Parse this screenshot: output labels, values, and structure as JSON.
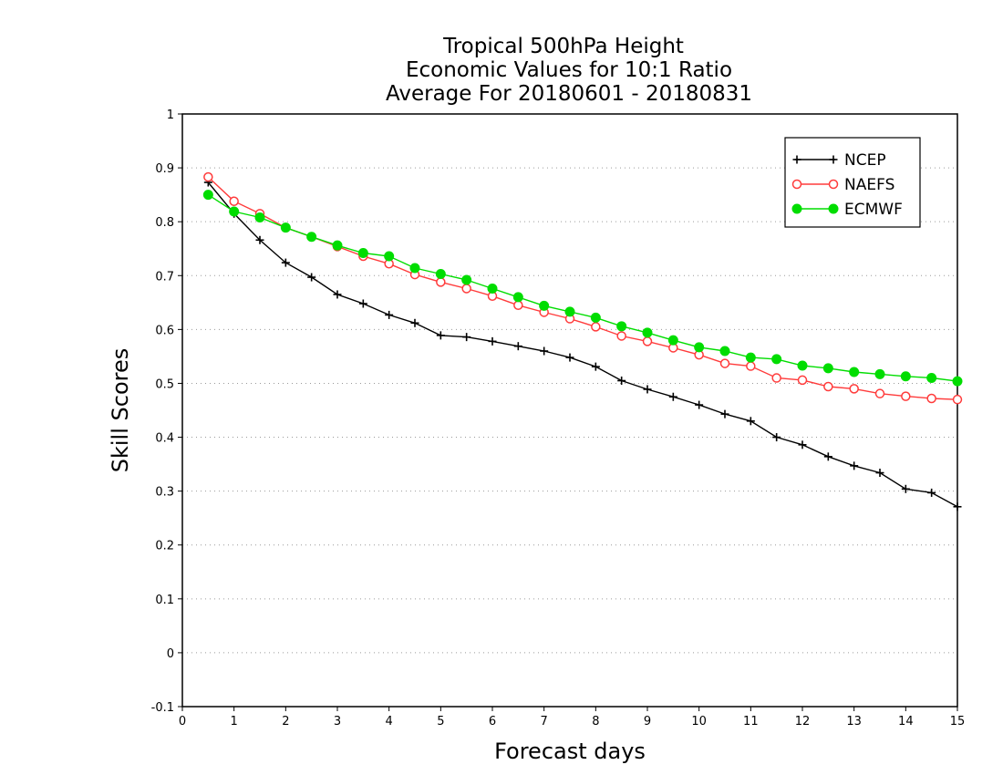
{
  "chart_data": {
    "type": "line",
    "title_lines": [
      "Tropical 500hPa Height",
      "Economic Values for 10:1 Ratio",
      "Average For 20180601 - 20180831"
    ],
    "xlabel": "Forecast days",
    "ylabel": "Skill Scores",
    "xlim": [
      0,
      15
    ],
    "ylim": [
      -0.1,
      1
    ],
    "x_ticks": [
      "0",
      "1",
      "2",
      "3",
      "4",
      "5",
      "6",
      "7",
      "8",
      "9",
      "10",
      "11",
      "12",
      "13",
      "14",
      "15"
    ],
    "y_ticks": [
      "-0.1",
      "0",
      "0.1",
      "0.2",
      "0.3",
      "0.4",
      "0.5",
      "0.6",
      "0.7",
      "0.8",
      "0.9",
      "1"
    ],
    "grid": true,
    "legend_position": "top-right",
    "x": [
      0.5,
      1,
      1.5,
      2,
      2.5,
      3,
      3.5,
      4,
      4.5,
      5,
      5.5,
      6,
      6.5,
      7,
      7.5,
      8,
      8.5,
      9,
      9.5,
      10,
      10.5,
      11,
      11.5,
      12,
      12.5,
      13,
      13.5,
      14,
      14.5,
      15
    ],
    "series": [
      {
        "name": "NCEP",
        "color": "#000000",
        "marker": "plus",
        "values": [
          0.873,
          0.815,
          0.766,
          0.724,
          0.697,
          0.665,
          0.648,
          0.627,
          0.612,
          0.589,
          0.586,
          0.578,
          0.569,
          0.56,
          0.548,
          0.531,
          0.505,
          0.489,
          0.475,
          0.46,
          0.443,
          0.43,
          0.4,
          0.386,
          0.364,
          0.347,
          0.334,
          0.304,
          0.297,
          0.271
        ]
      },
      {
        "name": "NAEFS",
        "color": "#ff3b3b",
        "marker": "open-circle",
        "values": [
          0.883,
          0.838,
          0.815,
          0.789,
          0.772,
          0.754,
          0.736,
          0.722,
          0.702,
          0.688,
          0.676,
          0.662,
          0.645,
          0.632,
          0.62,
          0.605,
          0.588,
          0.578,
          0.566,
          0.553,
          0.537,
          0.532,
          0.51,
          0.506,
          0.494,
          0.49,
          0.481,
          0.476,
          0.472,
          0.47
        ]
      },
      {
        "name": "ECMWF",
        "color": "#00dd00",
        "marker": "filled-circle",
        "values": [
          0.85,
          0.819,
          0.808,
          0.789,
          0.772,
          0.756,
          0.742,
          0.736,
          0.714,
          0.703,
          0.692,
          0.676,
          0.66,
          0.644,
          0.633,
          0.622,
          0.606,
          0.594,
          0.58,
          0.567,
          0.56,
          0.548,
          0.545,
          0.533,
          0.528,
          0.521,
          0.517,
          0.513,
          0.51,
          0.504
        ]
      }
    ]
  }
}
